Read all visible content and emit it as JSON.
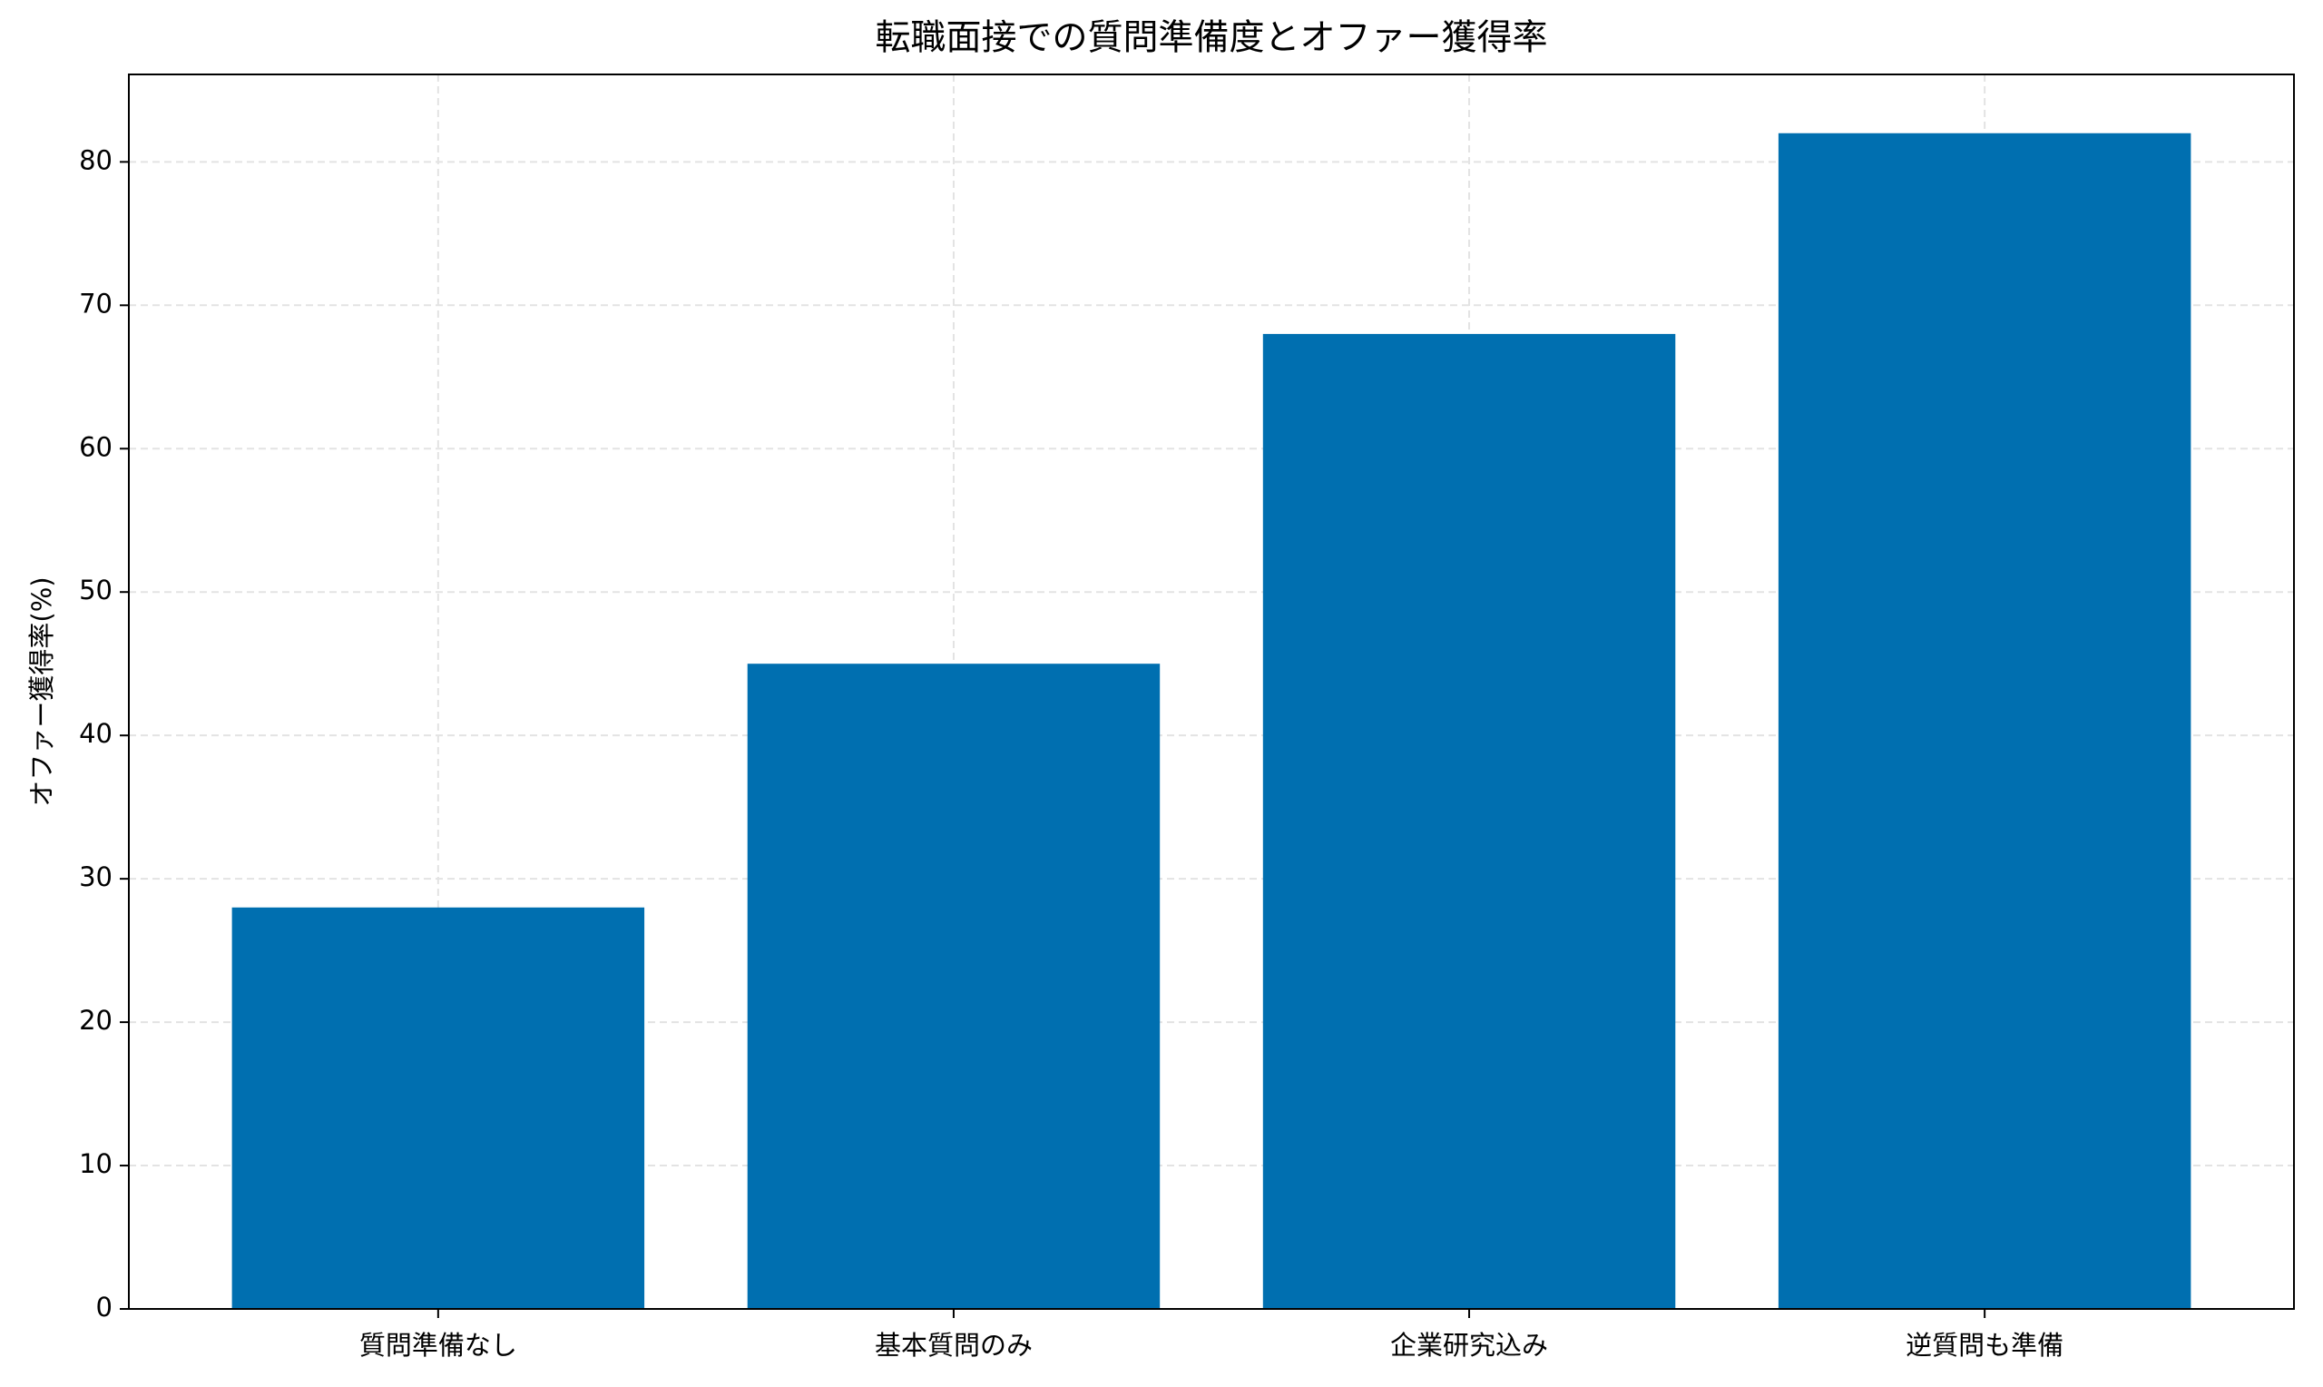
{
  "chart_data": {
    "type": "bar",
    "title": "転職面接での質問準備度とオファー獲得率",
    "y_label": "オファー獲得率(%)",
    "categories": [
      "質問準備なし",
      "基本質問のみ",
      "企業研究込み",
      "逆質問も準備"
    ],
    "values": [
      28,
      45,
      68,
      82
    ],
    "color": "#006fb0",
    "ylim": [
      0,
      86.1
    ],
    "yticks": [
      0,
      10,
      20,
      30,
      40,
      50,
      60,
      70,
      80
    ],
    "grid": true
  }
}
